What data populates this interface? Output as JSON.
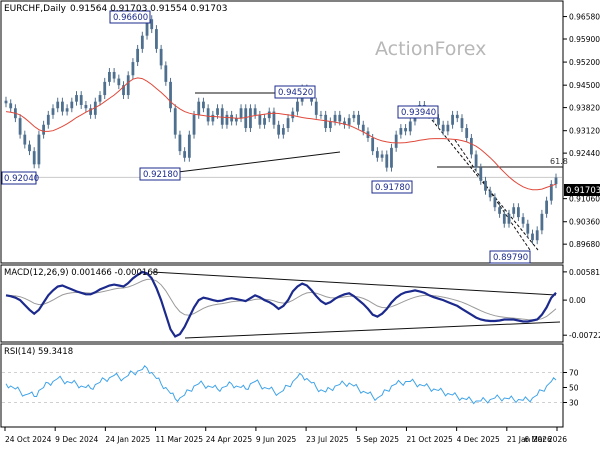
{
  "header": {
    "symbol": "EURCHF,Daily",
    "ohlc": "0.91564 0.91703 0.91554 0.91703"
  },
  "watermark": "ActionForex",
  "colors": {
    "candle": "#4f6f8e",
    "ma": "#e0493b",
    "trendline": "#111111",
    "macd_line": "#1b2a8c",
    "macd_signal": "#9a9a9a",
    "rsi": "#3fa3e8",
    "grid": "#d0d0d0",
    "current_bg": "#000000",
    "current_text": "#ffffff",
    "label_border": "#1b2a8c"
  },
  "chart_data": [
    {
      "type": "candlestick",
      "title": "EURCHF,Daily",
      "ylim": [
        0.892,
        0.969
      ],
      "yticks": [
        "0.96580",
        "0.95900",
        "0.95200",
        "0.94500",
        "0.93820",
        "0.93120",
        "0.92440",
        "0.91703",
        "0.91060",
        "0.90360",
        "0.89680"
      ],
      "xticks": [
        "24 Oct 2024",
        "9 Dec 2024",
        "24 Jan 2025",
        "11 Mar 2025",
        "24 Apr 2025",
        "9 Jun 2025",
        "23 Jul 2025",
        "5 Sep 2025",
        "21 Oct 2025",
        "4 Dec 2025",
        "21 Jan 2026",
        "6 Mar 2026"
      ],
      "close_series": [
        0.9395,
        0.938,
        0.935,
        0.93,
        0.927,
        0.925,
        0.921,
        0.93,
        0.933,
        0.936,
        0.938,
        0.94,
        0.937,
        0.938,
        0.94,
        0.942,
        0.939,
        0.938,
        0.936,
        0.94,
        0.942,
        0.946,
        0.949,
        0.947,
        0.945,
        0.942,
        0.948,
        0.952,
        0.956,
        0.96,
        0.965,
        0.962,
        0.956,
        0.951,
        0.946,
        0.938,
        0.93,
        0.925,
        0.923,
        0.93,
        0.936,
        0.94,
        0.938,
        0.934,
        0.936,
        0.938,
        0.933,
        0.936,
        0.934,
        0.935,
        0.938,
        0.932,
        0.938,
        0.936,
        0.933,
        0.935,
        0.937,
        0.933,
        0.93,
        0.932,
        0.935,
        0.937,
        0.94,
        0.944,
        0.943,
        0.94,
        0.936,
        0.936,
        0.932,
        0.934,
        0.936,
        0.934,
        0.933,
        0.935,
        0.936,
        0.933,
        0.931,
        0.929,
        0.925,
        0.923,
        0.924,
        0.92,
        0.926,
        0.93,
        0.932,
        0.931,
        0.934,
        0.937,
        0.939,
        0.937,
        0.936,
        0.935,
        0.933,
        0.931,
        0.933,
        0.936,
        0.935,
        0.932,
        0.929,
        0.924,
        0.92,
        0.916,
        0.913,
        0.911,
        0.908,
        0.906,
        0.903,
        0.906,
        0.908,
        0.905,
        0.903,
        0.9,
        0.898,
        0.901,
        0.906,
        0.91,
        0.915,
        0.917
      ],
      "moving_average": {
        "color": "#e0493b",
        "values": [
          0.937,
          0.9368,
          0.9365,
          0.936,
          0.935,
          0.9338,
          0.9325,
          0.9315,
          0.931,
          0.931,
          0.9312,
          0.9318,
          0.9325,
          0.9333,
          0.9342,
          0.9352,
          0.936,
          0.9368,
          0.9375,
          0.9382,
          0.939,
          0.94,
          0.941,
          0.942,
          0.9432,
          0.9445,
          0.9458,
          0.9468,
          0.9472,
          0.947,
          0.9462,
          0.9452,
          0.944,
          0.9428,
          0.9415,
          0.94,
          0.9388,
          0.9378,
          0.937,
          0.9365,
          0.9362,
          0.936,
          0.9358,
          0.9356,
          0.9355,
          0.9354,
          0.9353,
          0.9352,
          0.9351,
          0.935,
          0.935,
          0.9352,
          0.9355,
          0.9358,
          0.936,
          0.9362,
          0.9364,
          0.9365,
          0.9364,
          0.9362,
          0.936,
          0.9358,
          0.9355,
          0.9352,
          0.935,
          0.9348,
          0.9346,
          0.9344,
          0.9342,
          0.934,
          0.9338,
          0.9335,
          0.9332,
          0.9328,
          0.9322,
          0.9315,
          0.9308,
          0.93,
          0.9292,
          0.9286,
          0.9281,
          0.9278,
          0.9276,
          0.9275,
          0.9275,
          0.9276,
          0.9278,
          0.928,
          0.9283,
          0.9285,
          0.9287,
          0.9288,
          0.9288,
          0.9288,
          0.9287,
          0.9286,
          0.9285,
          0.9282,
          0.9278,
          0.9272,
          0.9265,
          0.9255,
          0.9243,
          0.923,
          0.9216,
          0.92,
          0.9186,
          0.9172,
          0.916,
          0.915,
          0.9142,
          0.9136,
          0.9133,
          0.9133,
          0.9135,
          0.914,
          0.9145,
          0.915
        ]
      },
      "price_labels": [
        "0.96600",
        "0.94520",
        "0.93940",
        "0.92180",
        "0.91780",
        "0.92040",
        "0.89790"
      ],
      "fib_label": "61.8",
      "current_value": "0.91703"
    },
    {
      "type": "line",
      "title": "MACD(12,26,9) 0.001466 -0.000168",
      "yticks": [
        "0.005814",
        "0.00",
        "-0.007222"
      ],
      "ylim": [
        -0.0078,
        0.0062
      ],
      "macd": [
        0.001,
        0.0008,
        0.0005,
        0.0,
        -0.001,
        -0.002,
        -0.0028,
        -0.002,
        -0.0005,
        0.001,
        0.002,
        0.0028,
        0.003,
        0.0026,
        0.0022,
        0.0018,
        0.0015,
        0.0012,
        0.0012,
        0.0016,
        0.0022,
        0.0026,
        0.003,
        0.0032,
        0.003,
        0.0028,
        0.0035,
        0.0045,
        0.0052,
        0.0058,
        0.0055,
        0.0045,
        0.0025,
        0.0,
        -0.003,
        -0.006,
        -0.0075,
        -0.007,
        -0.0055,
        -0.0035,
        -0.0015,
        0.0,
        0.0005,
        0.0003,
        0.0,
        -0.0002,
        -0.0001,
        0.0002,
        0.0004,
        0.0002,
        0.0,
        -0.0002,
        0.0004,
        0.001,
        0.0006,
        0.0,
        -0.0004,
        -0.001,
        -0.0018,
        -0.0012,
        0.0,
        0.0018,
        0.0028,
        0.0034,
        0.003,
        0.002,
        0.0008,
        -0.0002,
        -0.0008,
        -0.0004,
        0.0003,
        0.0008,
        0.0012,
        0.0014,
        0.0008,
        0.0,
        -0.0008,
        -0.0018,
        -0.003,
        -0.0034,
        -0.0028,
        -0.0018,
        -0.0005,
        0.0005,
        0.0012,
        0.0016,
        0.0018,
        0.002,
        0.0018,
        0.0015,
        0.001,
        0.0006,
        0.0003,
        0.0,
        -0.0004,
        -0.0008,
        -0.0012,
        -0.0018,
        -0.0024,
        -0.003,
        -0.0036,
        -0.004,
        -0.0042,
        -0.0043,
        -0.0043,
        -0.0042,
        -0.004,
        -0.004,
        -0.004,
        -0.0042,
        -0.0044,
        -0.0044,
        -0.0042,
        -0.004,
        -0.003,
        -0.0015,
        0.0005,
        0.0015
      ]
    },
    {
      "type": "line",
      "title": "RSI(14) 59.3418",
      "yticks": [
        "70",
        "50",
        "30"
      ],
      "ylim": [
        0,
        100
      ],
      "values": [
        55,
        52,
        48,
        45,
        40,
        42,
        38,
        46,
        50,
        56,
        58,
        62,
        60,
        58,
        56,
        55,
        52,
        50,
        49,
        54,
        57,
        61,
        63,
        66,
        64,
        62,
        66,
        70,
        72,
        74,
        76,
        70,
        62,
        55,
        50,
        42,
        35,
        36,
        40,
        46,
        52,
        55,
        54,
        52,
        50,
        48,
        50,
        52,
        55,
        52,
        50,
        48,
        55,
        58,
        54,
        50,
        48,
        45,
        42,
        46,
        52,
        58,
        64,
        66,
        62,
        56,
        50,
        47,
        44,
        48,
        52,
        54,
        55,
        56,
        52,
        48,
        45,
        42,
        38,
        36,
        40,
        46,
        52,
        55,
        56,
        58,
        58,
        56,
        54,
        52,
        50,
        48,
        46,
        44,
        42,
        40,
        38,
        36,
        34,
        33,
        32,
        32,
        33,
        34,
        36,
        36,
        36,
        35,
        34,
        34,
        33,
        34,
        36,
        40,
        46,
        52,
        58,
        60
      ]
    }
  ]
}
